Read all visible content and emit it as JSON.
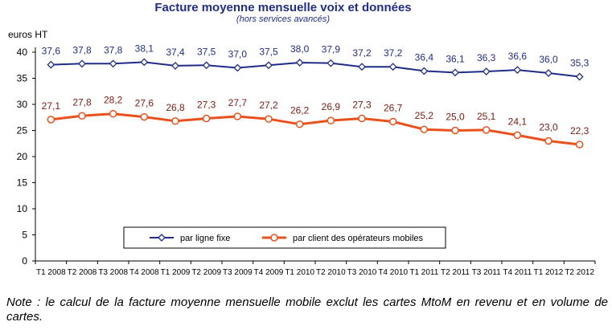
{
  "chart_data": {
    "type": "line",
    "title": "Facture moyenne mensuelle voix et données",
    "subtitle": "(hors services avancés)",
    "ylabel": "euros HT",
    "ylim": [
      0,
      40
    ],
    "yticks": [
      0,
      5,
      10,
      15,
      20,
      25,
      30,
      35,
      40
    ],
    "categories": [
      "T1 2008",
      "T2 2008",
      "T3 2008",
      "T4 2008",
      "T1 2009",
      "T2 2009",
      "T3 2009",
      "T4 2009",
      "T1 2010",
      "T2 2010",
      "T3 2010",
      "T4 2010",
      "T1 2011",
      "T2 2011",
      "T3 2011",
      "T4 2011",
      "T1 2012",
      "T2 2012"
    ],
    "series": [
      {
        "name": "par ligne fixe",
        "color": "#1F2D86",
        "marker": "diamond",
        "values": [
          37.6,
          37.8,
          37.8,
          38.1,
          37.4,
          37.5,
          37.0,
          37.5,
          38.0,
          37.9,
          37.2,
          37.2,
          36.4,
          36.1,
          36.3,
          36.6,
          36.0,
          35.3
        ],
        "labels": [
          "37,6",
          "37,8",
          "37,8",
          "38,1",
          "37,4",
          "37,5",
          "37,0",
          "37,5",
          "38,0",
          "37,9",
          "37,2",
          "37,2",
          "36,4",
          "36,1",
          "36,3",
          "36,6",
          "36,0",
          "35,3"
        ]
      },
      {
        "name": "par client des opérateurs mobiles",
        "color": "#E8501C",
        "label_color": "#7A1A10",
        "marker": "circle",
        "values": [
          27.1,
          27.8,
          28.2,
          27.6,
          26.8,
          27.3,
          27.7,
          27.2,
          26.2,
          26.9,
          27.3,
          26.7,
          25.2,
          25.0,
          25.1,
          24.1,
          23.0,
          22.3
        ],
        "labels": [
          "27,1",
          "27,8",
          "28,2",
          "27,6",
          "26,8",
          "27,3",
          "27,7",
          "27,2",
          "26,2",
          "26,9",
          "27,3",
          "26,7",
          "25,2",
          "25,0",
          "25,1",
          "24,1",
          "23,0",
          "22,3"
        ]
      }
    ],
    "legend_placement": "bottom",
    "grid": false
  },
  "note": "Note : le calcul de la facture moyenne mensuelle mobile exclut les cartes MtoM en revenu et en volume de cartes."
}
